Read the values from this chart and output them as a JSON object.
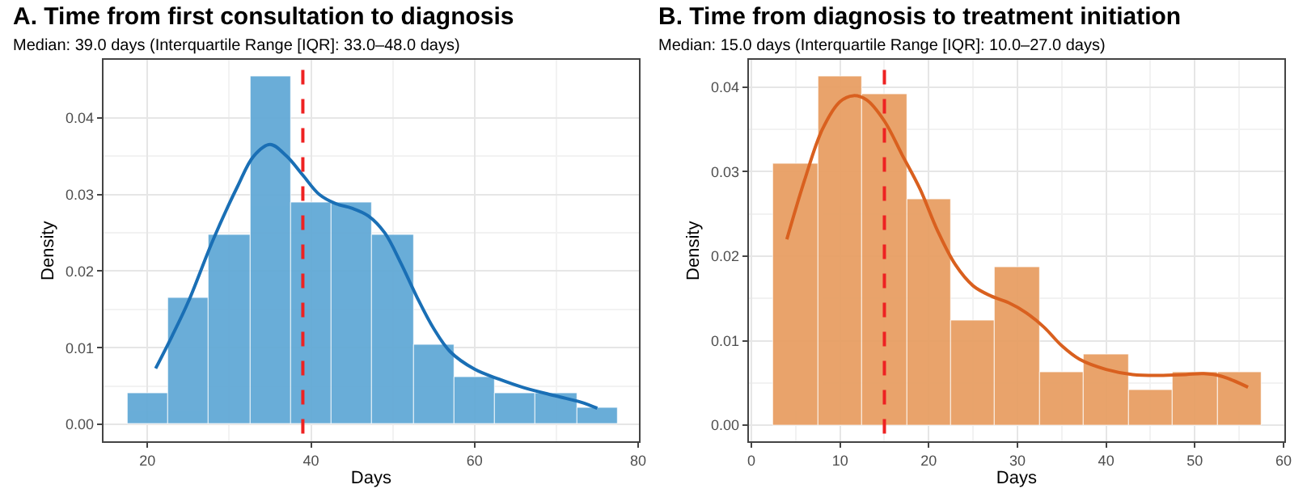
{
  "chart_data": [
    {
      "type": "histogram",
      "title": "A. Time from first consultation to diagnosis",
      "subtitle": "Median: 39.0 days (Interquartile Range [IQR]: 33.0–48.0 days)",
      "xlabel": "Days",
      "ylabel": "Density",
      "bins": [
        17.5,
        22.5,
        27.5,
        32.5,
        37.5,
        42.5,
        47.5,
        52.5,
        57.5,
        62.5,
        67.5,
        72.5,
        77.5
      ],
      "values": [
        0.0041,
        0.0165,
        0.0248,
        0.0454,
        0.0289,
        0.0289,
        0.0248,
        0.0103,
        0.0062,
        0.0041,
        0.0041,
        0.0021
      ],
      "color": "#62a9d6",
      "series": [
        {
          "type": "line",
          "color": "#1a6fb5",
          "x": [
            21,
            23,
            25,
            28,
            31,
            33,
            35,
            37,
            39,
            41,
            43,
            45,
            47,
            49,
            51,
            53,
            55,
            57,
            60,
            63,
            66,
            70,
            73,
            75
          ],
          "values": [
            0.0073,
            0.0115,
            0.016,
            0.024,
            0.031,
            0.035,
            0.0365,
            0.035,
            0.0325,
            0.03,
            0.0288,
            0.0282,
            0.0272,
            0.025,
            0.021,
            0.0165,
            0.0125,
            0.0095,
            0.0072,
            0.0059,
            0.0048,
            0.0037,
            0.0029,
            0.0021
          ]
        }
      ],
      "ref_lines": [
        {
          "axis": "x",
          "value": 39,
          "color": "#ee2222",
          "line_style": "dashed"
        }
      ],
      "xlim": [
        14.6,
        80.1
      ],
      "ylim": [
        -0.0022,
        0.0475
      ],
      "xticks": [
        20,
        40,
        60,
        80
      ],
      "yticks": [
        {
          "value": 0,
          "label": "0.00"
        },
        {
          "value": 0.01,
          "label": "0.01"
        },
        {
          "value": 0.02,
          "label": "0.02"
        },
        {
          "value": 0.03,
          "label": "0.03"
        },
        {
          "value": 0.04,
          "label": "0.04"
        }
      ],
      "grid": true
    },
    {
      "type": "histogram",
      "title": "B. Time from diagnosis to treatment initiation",
      "subtitle": "Median: 15.0 days (Interquartile Range [IQR]: 10.0–27.0 days)",
      "xlabel": "Days",
      "ylabel": "Density",
      "bins": [
        2.5,
        7.5,
        12.5,
        17.5,
        22.5,
        27.5,
        32.5,
        37.5,
        42.5,
        47.5,
        52.5,
        57.5
      ],
      "values": [
        0.031,
        0.0412,
        0.0392,
        0.0268,
        0.0124,
        0.0187,
        0.0063,
        0.0083,
        0.0042,
        0.0063,
        0.0063
      ],
      "color": "#e89f64",
      "series": [
        {
          "type": "line",
          "color": "#d9601f",
          "x": [
            4,
            6,
            8,
            10,
            11.5,
            13,
            15,
            17,
            19,
            21,
            23,
            25,
            27,
            29,
            31,
            33,
            35,
            37,
            40,
            43,
            46,
            49,
            51,
            53,
            56
          ],
          "values": [
            0.022,
            0.029,
            0.035,
            0.0383,
            0.039,
            0.0385,
            0.036,
            0.032,
            0.028,
            0.023,
            0.019,
            0.0165,
            0.0153,
            0.0145,
            0.0133,
            0.0116,
            0.0094,
            0.0078,
            0.0066,
            0.006,
            0.0059,
            0.006,
            0.0061,
            0.0058,
            0.0045
          ]
        }
      ],
      "ref_lines": [
        {
          "axis": "x",
          "value": 15,
          "color": "#ee2222",
          "line_style": "dashed"
        }
      ],
      "xlim": [
        -0.3,
        60.1
      ],
      "ylim": [
        -0.0019,
        0.0432
      ],
      "xticks": [
        0,
        10,
        20,
        30,
        40,
        50,
        60
      ],
      "yticks": [
        {
          "value": 0,
          "label": "0.00"
        },
        {
          "value": 0.01,
          "label": "0.01"
        },
        {
          "value": 0.02,
          "label": "0.02"
        },
        {
          "value": 0.03,
          "label": "0.03"
        },
        {
          "value": 0.04,
          "label": "0.04"
        }
      ],
      "grid": true
    }
  ]
}
